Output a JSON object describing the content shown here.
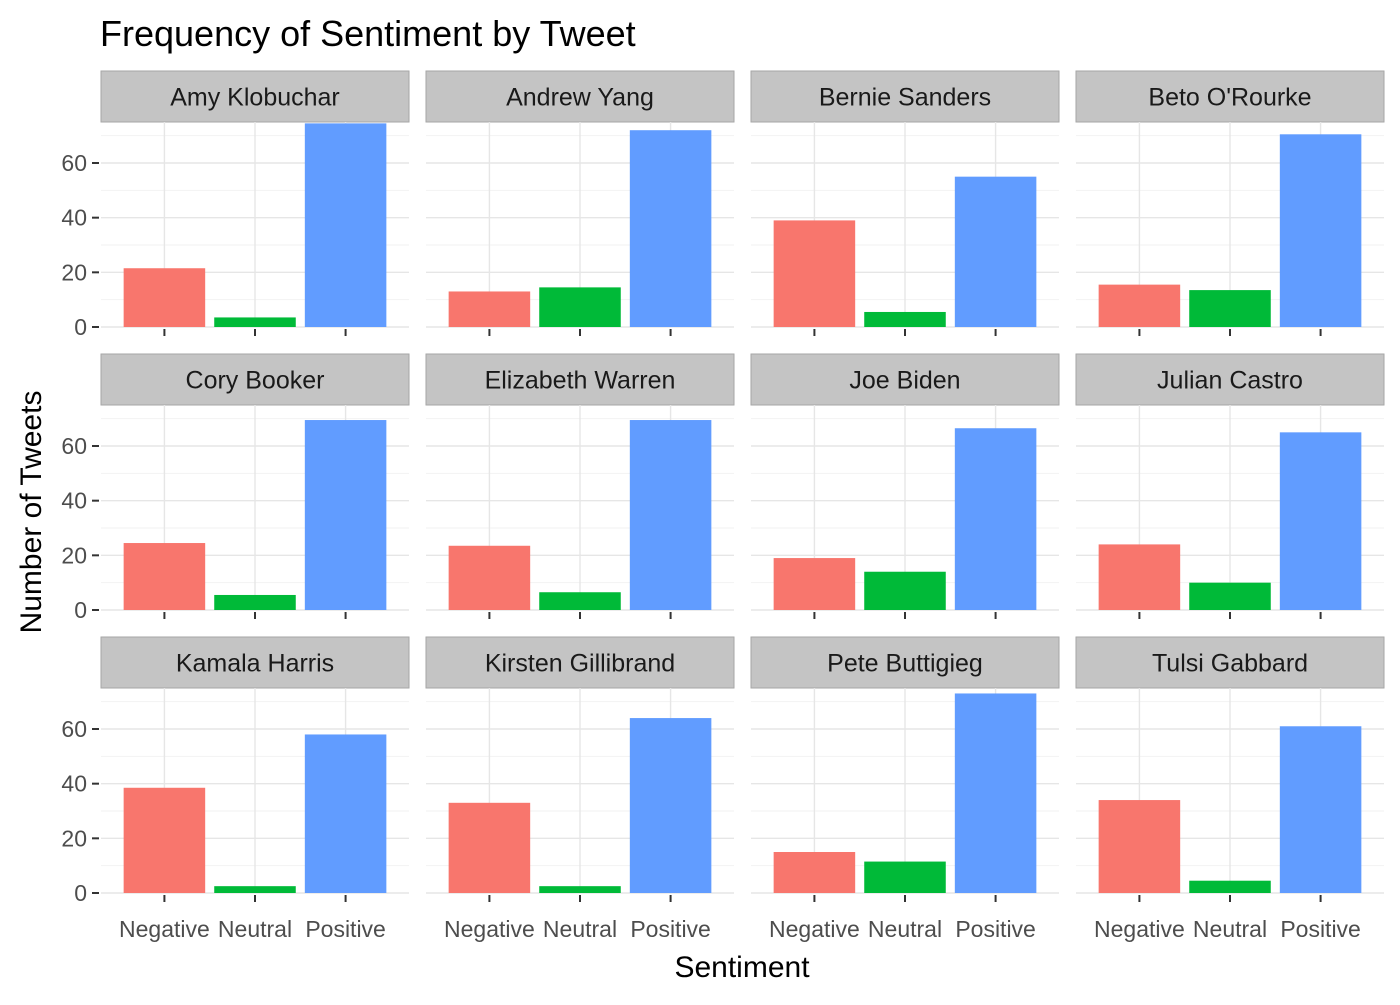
{
  "chart_data": {
    "type": "bar",
    "title": "Frequency of Sentiment by Tweet",
    "xlabel": "Sentiment",
    "ylabel": "Number of Tweets",
    "categories": [
      "Negative",
      "Neutral",
      "Positive"
    ],
    "y_ticks": [
      0,
      20,
      40,
      60
    ],
    "ylim": [
      0,
      75
    ],
    "colors": {
      "Negative": "#F8766D",
      "Neutral": "#00BA38",
      "Positive": "#619CFF"
    },
    "panels": [
      {
        "name": "Amy Klobuchar",
        "values": [
          21.5,
          3.5,
          74.5
        ]
      },
      {
        "name": "Andrew Yang",
        "values": [
          13,
          14.5,
          72
        ]
      },
      {
        "name": "Bernie Sanders",
        "values": [
          39,
          5.5,
          55
        ]
      },
      {
        "name": "Beto O'Rourke",
        "values": [
          15.5,
          13.5,
          70.5
        ]
      },
      {
        "name": "Cory Booker",
        "values": [
          24.5,
          5.5,
          69.5
        ]
      },
      {
        "name": "Elizabeth Warren",
        "values": [
          23.5,
          6.5,
          69.5
        ]
      },
      {
        "name": "Joe Biden",
        "values": [
          19,
          14,
          66.5
        ]
      },
      {
        "name": "Julian Castro",
        "values": [
          24,
          10,
          65
        ]
      },
      {
        "name": "Kamala Harris",
        "values": [
          38.5,
          2.5,
          58
        ]
      },
      {
        "name": "Kirsten Gillibrand",
        "values": [
          33,
          2.5,
          64
        ]
      },
      {
        "name": "Pete Buttigieg",
        "values": [
          15,
          11.5,
          73
        ]
      },
      {
        "name": "Tulsi Gabbard",
        "values": [
          34,
          4.5,
          61
        ]
      }
    ]
  }
}
